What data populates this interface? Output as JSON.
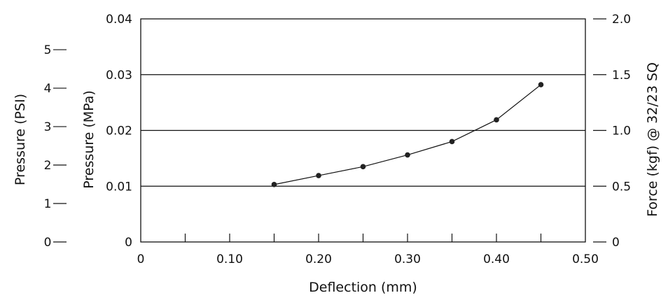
{
  "chart_data": {
    "type": "line",
    "xlabel": "Deflection (mm)",
    "ylabel": "Pressure (MPa)",
    "ylabel_psi": "Pressure (PSI)",
    "ylabel_right": "Force (kgf) @ 32/23 SQ",
    "xlim": [
      0,
      0.5
    ],
    "ylim": [
      0,
      0.04
    ],
    "psi_lim": [
      0,
      5.8015
    ],
    "force_lim": [
      0,
      2.0
    ],
    "x_ticks": [
      {
        "value": 0.0,
        "label": "0"
      },
      {
        "value": 0.1,
        "label": "0.10"
      },
      {
        "value": 0.2,
        "label": "0.20"
      },
      {
        "value": 0.3,
        "label": "0.30"
      },
      {
        "value": 0.4,
        "label": "0.40"
      },
      {
        "value": 0.5,
        "label": "0.50"
      }
    ],
    "x_minor_ticks": [
      0.05,
      0.15,
      0.25,
      0.35,
      0.45
    ],
    "y_ticks": [
      {
        "value": 0.0,
        "label": "0"
      },
      {
        "value": 0.01,
        "label": "0.01"
      },
      {
        "value": 0.02,
        "label": "0.02"
      },
      {
        "value": 0.03,
        "label": "0.03"
      },
      {
        "value": 0.04,
        "label": "0.04"
      }
    ],
    "psi_ticks": [
      {
        "value": 0,
        "label": "0"
      },
      {
        "value": 1,
        "label": "1"
      },
      {
        "value": 2,
        "label": "2"
      },
      {
        "value": 3,
        "label": "3"
      },
      {
        "value": 4,
        "label": "4"
      },
      {
        "value": 5,
        "label": "5"
      }
    ],
    "force_ticks": [
      {
        "value": 0.0,
        "label": "0"
      },
      {
        "value": 0.5,
        "label": "0.5"
      },
      {
        "value": 1.0,
        "label": "1.0"
      },
      {
        "value": 1.5,
        "label": "1.5"
      },
      {
        "value": 2.0,
        "label": "2.0"
      }
    ],
    "gridlines_y": [
      0.01,
      0.02,
      0.03
    ],
    "series": [
      {
        "x": [
          0.15,
          0.2,
          0.25,
          0.3,
          0.35,
          0.4,
          0.45
        ],
        "y": [
          0.0103,
          0.0119,
          0.0135,
          0.0156,
          0.018,
          0.0219,
          0.0282
        ]
      }
    ],
    "colors": {
      "line": "#111111",
      "marker": "#222222",
      "axis": "#111111"
    }
  }
}
